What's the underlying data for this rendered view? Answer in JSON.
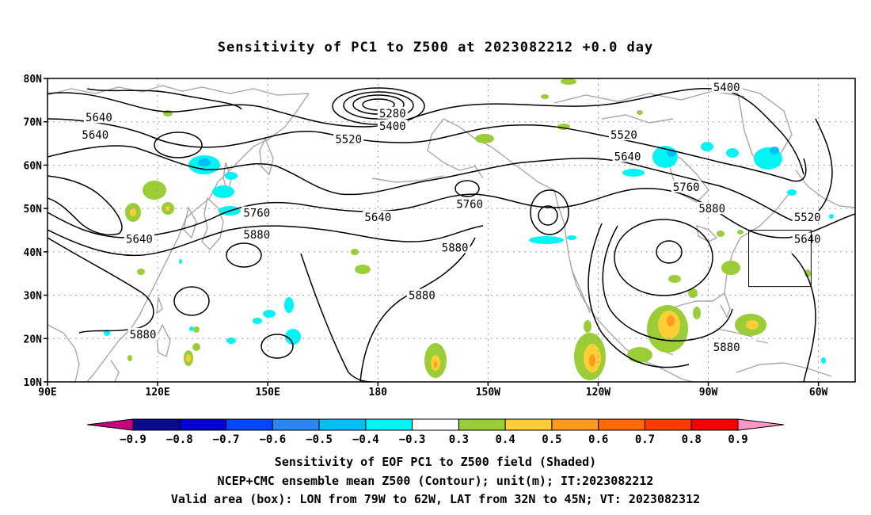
{
  "title": "Sensitivity of PC1 to Z500 at 2023082212 +0.0 day",
  "lat_labels": [
    "80N",
    "70N",
    "60N",
    "50N",
    "40N",
    "30N",
    "20N",
    "10N"
  ],
  "lon_labels": [
    "90E",
    "120E",
    "150E",
    "180",
    "150W",
    "120W",
    "90W",
    "60W"
  ],
  "contour_labels": [
    {
      "text": "5640",
      "lon": 104,
      "lat": 71
    },
    {
      "text": "5640",
      "lon": 103,
      "lat": 67
    },
    {
      "text": "5640",
      "lon": 115,
      "lat": 43
    },
    {
      "text": "5640",
      "lon": 180,
      "lat": 48
    },
    {
      "text": "5640",
      "lon": -112,
      "lat": 62
    },
    {
      "text": "5640",
      "lon": -63,
      "lat": 43
    },
    {
      "text": "5400",
      "lon": -85,
      "lat": 78
    },
    {
      "text": "5400",
      "lon": 184,
      "lat": 69
    },
    {
      "text": "5280",
      "lon": 184,
      "lat": 72
    },
    {
      "text": "5520",
      "lon": 172,
      "lat": 66
    },
    {
      "text": "5520",
      "lon": -113,
      "lat": 67
    },
    {
      "text": "5520",
      "lon": -63,
      "lat": 48
    },
    {
      "text": "5760",
      "lon": 147,
      "lat": 49
    },
    {
      "text": "5760",
      "lon": -155,
      "lat": 51
    },
    {
      "text": "5760",
      "lon": -96,
      "lat": 55
    },
    {
      "text": "5880",
      "lon": 147,
      "lat": 44
    },
    {
      "text": "5880",
      "lon": -159,
      "lat": 41
    },
    {
      "text": "5880",
      "lon": -168,
      "lat": 30
    },
    {
      "text": "5880",
      "lon": -89,
      "lat": 50
    },
    {
      "text": "5880",
      "lon": 116,
      "lat": 21
    },
    {
      "text": "5880",
      "lon": -85,
      "lat": 18
    }
  ],
  "valid_box": {
    "lon_min": -79,
    "lon_max": -62,
    "lat_min": 32,
    "lat_max": 45
  },
  "colorbar": {
    "colors": [
      "#c6007f",
      "#0a0a8c",
      "#0000d2",
      "#0045ff",
      "#2a86ee",
      "#00bff5",
      "#00f5f5",
      "#ffffff",
      "#9bcd37",
      "#ffcd36",
      "#ff9a1e",
      "#ff6a00",
      "#ff3b00",
      "#f50000",
      "#ff96c8"
    ],
    "labels": [
      "−0.9",
      "−0.8",
      "−0.7",
      "−0.6",
      "−0.5",
      "−0.4",
      "−0.3",
      "0.3",
      "0.4",
      "0.5",
      "0.6",
      "0.7",
      "0.8",
      "0.9"
    ]
  },
  "captions": [
    "Sensitivity of EOF PC1 to Z500 field (Shaded)",
    "NCEP+CMC ensemble mean Z500 (Contour); unit(m); IT:2023082212",
    "Valid area (box): LON from 79W to 62W, LAT from 32N to 45N; VT: 2023082312"
  ]
}
